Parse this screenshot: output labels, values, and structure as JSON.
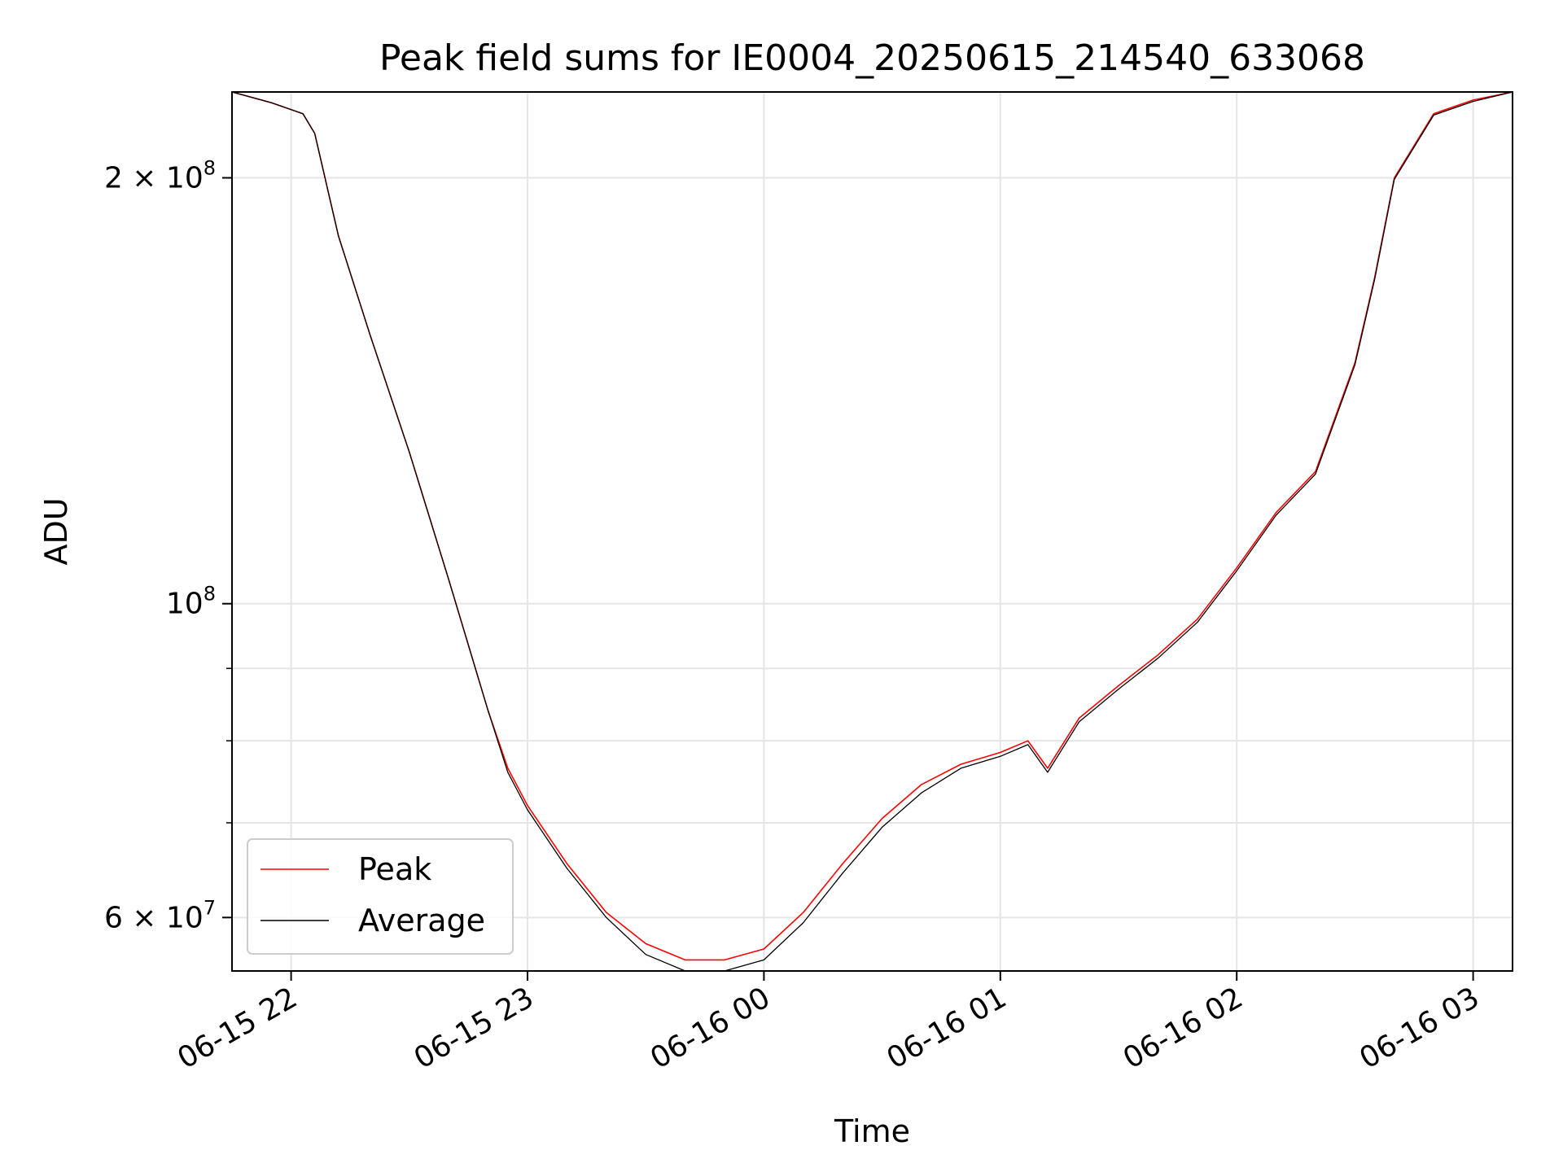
{
  "chart_data": {
    "type": "line",
    "title": "Peak field sums for IE0004_20250615_214540_633068",
    "xlabel": "Time",
    "ylabel": "ADU",
    "x_axis": "datetime",
    "y_scale": "log",
    "xlim": [
      "2025-06-15 21:45",
      "2025-06-16 03:10"
    ],
    "ylim": [
      55000000,
      230000000
    ],
    "x_ticks": [
      {
        "value": "2025-06-15 22:00",
        "label": "06-15 22"
      },
      {
        "value": "2025-06-15 23:00",
        "label": "06-15 23"
      },
      {
        "value": "2025-06-16 00:00",
        "label": "06-16 00"
      },
      {
        "value": "2025-06-16 01:00",
        "label": "06-16 01"
      },
      {
        "value": "2025-06-16 02:00",
        "label": "06-16 02"
      },
      {
        "value": "2025-06-16 03:00",
        "label": "06-16 03"
      }
    ],
    "y_ticks_major": [
      {
        "value": 200000000,
        "label_base": "2 × 10",
        "label_exp": "8"
      },
      {
        "value": 100000000,
        "label_base": "10",
        "label_exp": "8"
      },
      {
        "value": 60000000,
        "label_base": "6 × 10",
        "label_exp": "7"
      }
    ],
    "y_gridlines_minor": [
      70000000,
      80000000,
      90000000
    ],
    "grid": true,
    "legend_position": "lower-left",
    "colors": {
      "peak": "#ff0000",
      "average": "#000000"
    },
    "x": [
      "2025-06-15 21:45",
      "2025-06-15 21:55",
      "2025-06-15 22:03",
      "2025-06-15 22:06",
      "2025-06-15 22:12",
      "2025-06-15 22:20",
      "2025-06-15 22:30",
      "2025-06-15 22:40",
      "2025-06-15 22:50",
      "2025-06-15 22:55",
      "2025-06-15 23:00",
      "2025-06-15 23:10",
      "2025-06-15 23:20",
      "2025-06-15 23:30",
      "2025-06-15 23:40",
      "2025-06-15 23:50",
      "2025-06-16 00:00",
      "2025-06-16 00:10",
      "2025-06-16 00:20",
      "2025-06-16 00:30",
      "2025-06-16 00:40",
      "2025-06-16 00:50",
      "2025-06-16 01:00",
      "2025-06-16 01:07",
      "2025-06-16 01:12",
      "2025-06-16 01:20",
      "2025-06-16 01:30",
      "2025-06-16 01:40",
      "2025-06-16 01:50",
      "2025-06-16 02:00",
      "2025-06-16 02:10",
      "2025-06-16 02:20",
      "2025-06-16 02:30",
      "2025-06-16 02:35",
      "2025-06-16 02:40",
      "2025-06-16 02:50",
      "2025-06-16 03:00",
      "2025-06-16 03:10"
    ],
    "series": [
      {
        "name": "Peak",
        "values": [
          230000000,
          226000000,
          222000000,
          215000000,
          182000000,
          155000000,
          128000000,
          104000000,
          84000000,
          76500000,
          72000000,
          65500000,
          60500000,
          57500000,
          56000000,
          56000000,
          57000000,
          60500000,
          65500000,
          70500000,
          74500000,
          77000000,
          78500000,
          80000000,
          76500000,
          83000000,
          87500000,
          92000000,
          97500000,
          106000000,
          116000000,
          124000000,
          148000000,
          170000000,
          200000000,
          222000000,
          227000000,
          230000000
        ]
      },
      {
        "name": "Average",
        "values": [
          230000000,
          226000000,
          222000000,
          215000000,
          182000000,
          155000000,
          128000000,
          104000000,
          84000000,
          76000000,
          71500000,
          65000000,
          60000000,
          56500000,
          55000000,
          55000000,
          56000000,
          59500000,
          64500000,
          69500000,
          73500000,
          76500000,
          78000000,
          79500000,
          76000000,
          82500000,
          87000000,
          91500000,
          97000000,
          105500000,
          115500000,
          123500000,
          147500000,
          169500000,
          199500000,
          221500000,
          226500000,
          230000000
        ]
      }
    ]
  }
}
